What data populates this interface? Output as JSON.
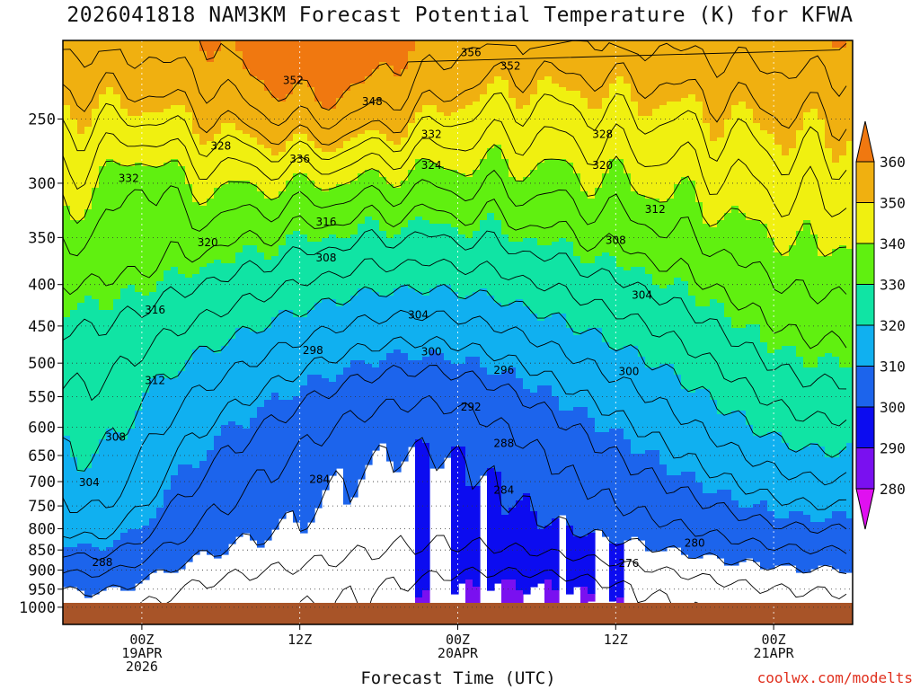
{
  "chart_data": {
    "type": "heatmap",
    "title": "2026041818 NAM3KM Forecast Potential Temperature (K) for KFWA",
    "xlabel": "Forecast Time (UTC)",
    "ylabel": "",
    "credit": "coolwx.com/modelts",
    "y_scale": "log-pressure",
    "y_ticks": [
      250,
      300,
      350,
      400,
      450,
      500,
      550,
      600,
      650,
      700,
      750,
      800,
      850,
      900,
      950,
      1000
    ],
    "x_ticks": [
      {
        "hour": 6,
        "lines": [
          "00Z",
          "19APR",
          "2026"
        ]
      },
      {
        "hour": 18,
        "lines": [
          "12Z"
        ]
      },
      {
        "hour": 30,
        "lines": [
          "00Z",
          "20APR"
        ]
      },
      {
        "hour": 42,
        "lines": [
          "12Z"
        ]
      },
      {
        "hour": 54,
        "lines": [
          "00Z",
          "21APR"
        ]
      }
    ],
    "x_range_hours": [
      0,
      60
    ],
    "colorbar": {
      "levels": [
        280,
        290,
        300,
        310,
        320,
        330,
        340,
        350,
        360
      ],
      "colors": [
        "#e010f0",
        "#7a10f0",
        "#0c0cf0",
        "#1c64ec",
        "#10b0f0",
        "#10e4a4",
        "#60f010",
        "#f0f010",
        "#f0b010",
        "#f07810"
      ]
    },
    "contour_labels": [
      {
        "v": "356",
        "h": 31,
        "p": 207
      },
      {
        "v": "352",
        "h": 17.5,
        "p": 224
      },
      {
        "v": "352",
        "h": 34,
        "p": 215
      },
      {
        "v": "348",
        "h": 23.5,
        "p": 238
      },
      {
        "v": "332",
        "h": 28,
        "p": 261
      },
      {
        "v": "328",
        "h": 41,
        "p": 261
      },
      {
        "v": "328",
        "h": 12,
        "p": 270
      },
      {
        "v": "336",
        "h": 18,
        "p": 280
      },
      {
        "v": "324",
        "h": 28,
        "p": 285
      },
      {
        "v": "320",
        "h": 41,
        "p": 285
      },
      {
        "v": "332",
        "h": 5,
        "p": 296
      },
      {
        "v": "312",
        "h": 45,
        "p": 323
      },
      {
        "v": "316",
        "h": 20,
        "p": 335
      },
      {
        "v": "308",
        "h": 42,
        "p": 353
      },
      {
        "v": "320",
        "h": 11,
        "p": 355
      },
      {
        "v": "308",
        "h": 20,
        "p": 371
      },
      {
        "v": "304",
        "h": 44,
        "p": 412
      },
      {
        "v": "316",
        "h": 7,
        "p": 430
      },
      {
        "v": "304",
        "h": 27,
        "p": 436
      },
      {
        "v": "298",
        "h": 19,
        "p": 482
      },
      {
        "v": "300",
        "h": 28,
        "p": 484
      },
      {
        "v": "296",
        "h": 33.5,
        "p": 510
      },
      {
        "v": "300",
        "h": 43,
        "p": 512
      },
      {
        "v": "312",
        "h": 7,
        "p": 525
      },
      {
        "v": "292",
        "h": 31,
        "p": 566
      },
      {
        "v": "308",
        "h": 4,
        "p": 617
      },
      {
        "v": "288",
        "h": 33.5,
        "p": 628
      },
      {
        "v": "284",
        "h": 19.5,
        "p": 695
      },
      {
        "v": "284",
        "h": 33.5,
        "p": 717
      },
      {
        "v": "304",
        "h": 2,
        "p": 702
      },
      {
        "v": "280",
        "h": 48,
        "p": 834
      },
      {
        "v": "288",
        "h": 3,
        "p": 880
      },
      {
        "v": "276",
        "h": 43,
        "p": 883
      }
    ]
  }
}
